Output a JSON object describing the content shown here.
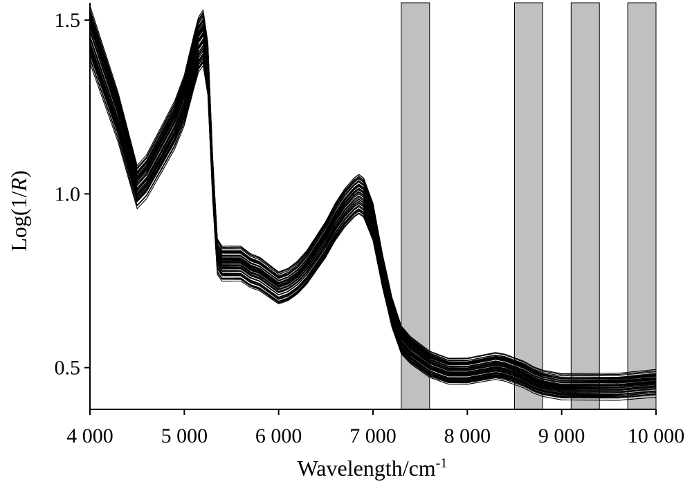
{
  "chart_data": {
    "type": "line",
    "title": "",
    "xlabel": "Wavelength/cm",
    "xlabel_superscript": "-1",
    "ylabel_prefix": "Log(1/",
    "ylabel_italic": "R",
    "ylabel_suffix": ")",
    "xlim": [
      4000,
      10000
    ],
    "ylim": [
      0.38,
      1.55
    ],
    "x_ticks": [
      4000,
      5000,
      6000,
      7000,
      8000,
      9000,
      10000
    ],
    "x_tick_labels": [
      "4 000",
      "5 000",
      "6 000",
      "7 000",
      "8 000",
      "9 000",
      "10 000"
    ],
    "y_ticks": [
      0.5,
      1.0,
      1.5
    ],
    "y_tick_labels": [
      "0.5",
      "1.0",
      "1.5"
    ],
    "grid": false,
    "legend": "none",
    "shaded_regions": [
      {
        "x_start": 7300,
        "x_end": 7600
      },
      {
        "x_start": 8500,
        "x_end": 8800
      },
      {
        "x_start": 9100,
        "x_end": 9400
      },
      {
        "x_start": 9700,
        "x_end": 10000
      }
    ],
    "series_count": 60,
    "representative_spectrum": {
      "x": [
        4000,
        4100,
        4200,
        4300,
        4400,
        4500,
        4600,
        4700,
        4800,
        4900,
        5000,
        5100,
        5150,
        5200,
        5250,
        5300,
        5350,
        5400,
        5500,
        5600,
        5700,
        5800,
        5900,
        6000,
        6100,
        6200,
        6300,
        6400,
        6500,
        6600,
        6700,
        6800,
        6850,
        6900,
        7000,
        7100,
        7200,
        7300,
        7400,
        7500,
        7600,
        7700,
        7800,
        7900,
        8000,
        8100,
        8200,
        8300,
        8400,
        8500,
        8600,
        8700,
        8800,
        8900,
        9000,
        9200,
        9400,
        9600,
        9800,
        10000
      ],
      "y": [
        1.46,
        1.38,
        1.3,
        1.22,
        1.12,
        1.02,
        1.05,
        1.1,
        1.15,
        1.2,
        1.27,
        1.38,
        1.43,
        1.45,
        1.36,
        1.05,
        0.82,
        0.8,
        0.8,
        0.8,
        0.78,
        0.77,
        0.75,
        0.73,
        0.74,
        0.76,
        0.79,
        0.83,
        0.87,
        0.92,
        0.96,
        0.99,
        1.0,
        0.99,
        0.92,
        0.78,
        0.66,
        0.58,
        0.55,
        0.53,
        0.51,
        0.5,
        0.49,
        0.49,
        0.49,
        0.495,
        0.5,
        0.505,
        0.5,
        0.49,
        0.48,
        0.465,
        0.455,
        0.45,
        0.445,
        0.445,
        0.445,
        0.445,
        0.45,
        0.455
      ]
    }
  }
}
